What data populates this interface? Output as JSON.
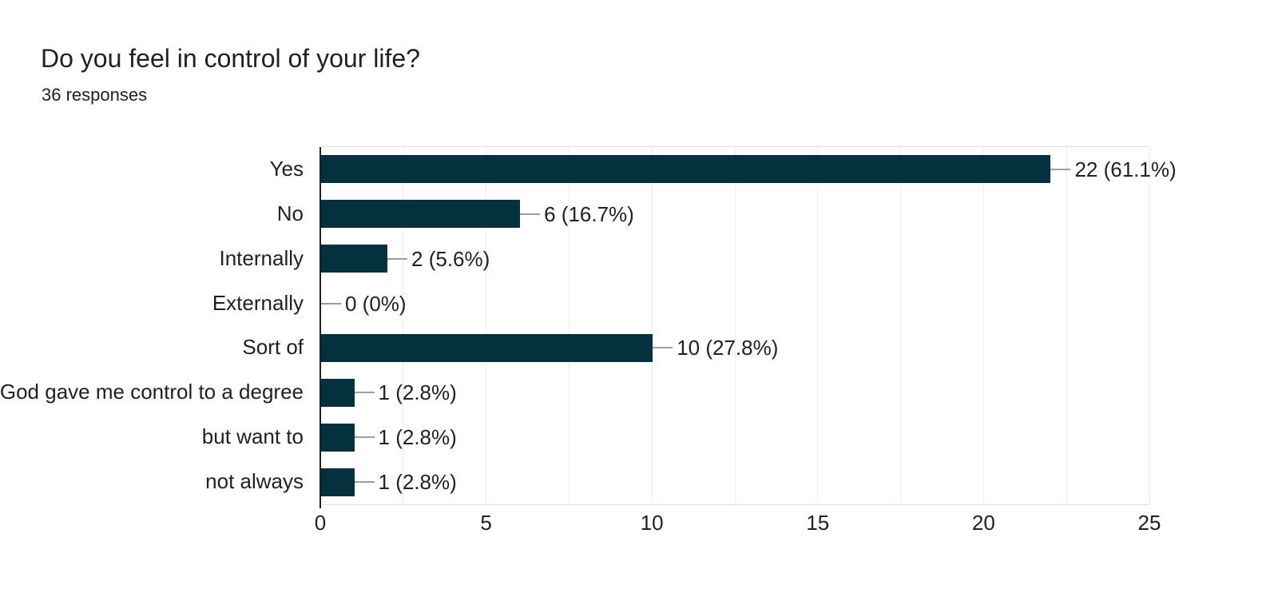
{
  "header": {
    "title": "Do you feel in control of your life?",
    "subtitle": "36 responses"
  },
  "chart_data": {
    "type": "bar",
    "orientation": "horizontal",
    "title": "Do you feel in control of your life?",
    "subtitle": "36 responses",
    "categories": [
      "Yes",
      "No",
      "Internally",
      "Externally",
      "Sort of",
      "God gave me control to a degree",
      "but want to",
      "not always"
    ],
    "values": [
      22,
      6,
      2,
      0,
      10,
      1,
      1,
      1
    ],
    "value_labels": [
      "22 (61.1%)",
      "6 (16.7%)",
      "2 (5.6%)",
      "0 (0%)",
      "10 (27.8%)",
      "1 (2.8%)",
      "1 (2.8%)",
      "1 (2.8%)"
    ],
    "xlim": [
      0,
      25
    ],
    "x_major_ticks": [
      "0",
      "5",
      "10",
      "15",
      "20",
      "25"
    ],
    "x_major_tick_values": [
      0,
      5,
      10,
      15,
      20,
      25
    ],
    "x_minor_grid_step": 2.5,
    "grid": true,
    "legend": "none",
    "xlabel": "",
    "ylabel": "",
    "colors": {
      "bar": "#05303e",
      "text": "#202124",
      "grid": "#ececec",
      "plot_border": "#e2e2e2",
      "axis": "#202124",
      "leader": "#9e9e9e",
      "background": "#ffffff"
    }
  }
}
